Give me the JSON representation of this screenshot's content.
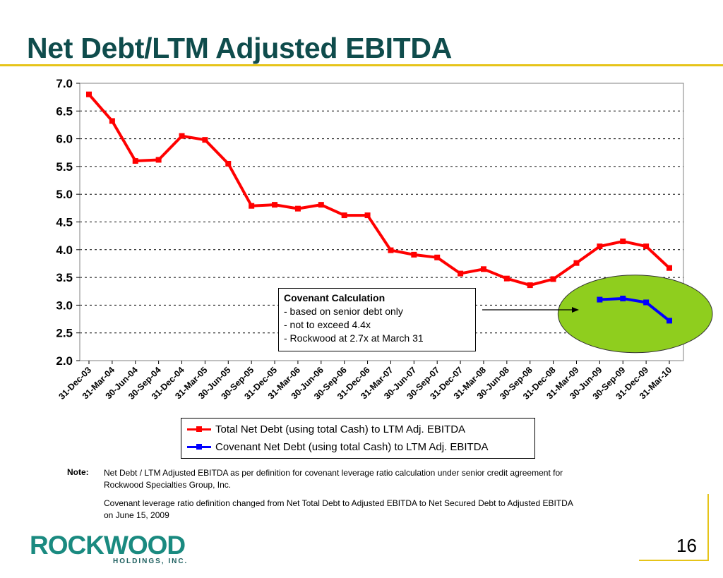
{
  "page": {
    "title": "Net Debt/LTM Adjusted EBITDA",
    "page_number": "16",
    "logo_text": "ROCKWOOD",
    "logo_subtext": "HOLDINGS, INC."
  },
  "callout": {
    "heading": "Covenant Calculation",
    "line1": "- based on senior debt only",
    "line2": "- not to exceed 4.4x",
    "line3": "- Rockwood at 2.7x at March 31"
  },
  "note": {
    "label": "Note:",
    "line1": "Net Debt / LTM Adjusted EBITDA as per definition for covenant leverage ratio calculation under senior credit agreement for",
    "line2": "Rockwood Specialties Group, Inc.",
    "line3": "Covenant leverage ratio definition changed from Net Total Debt to Adjusted EBITDA to Net Secured Debt to Adjusted EBITDA",
    "line4": "on June 15, 2009"
  },
  "colors": {
    "title": "#0f4c4c",
    "accent_rule": "#e6c419",
    "total_series": "#ff0000",
    "covenant_series": "#0000ff",
    "highlight_ellipse": "#8fce1e"
  },
  "chart_data": {
    "type": "line",
    "title": "",
    "xlabel": "",
    "ylabel": "",
    "ylim": [
      2.0,
      7.0
    ],
    "yticks": [
      "7.0",
      "6.5",
      "6.0",
      "5.5",
      "5.0",
      "4.5",
      "4.0",
      "3.5",
      "3.0",
      "2.5",
      "2.0"
    ],
    "grid": "horizontal dotted",
    "legend_position": "bottom",
    "categories": [
      "31-Dec-03",
      "31-Mar-04",
      "30-Jun-04",
      "30-Sep-04",
      "31-Dec-04",
      "31-Mar-05",
      "30-Jun-05",
      "30-Sep-05",
      "31-Dec-05",
      "31-Mar-06",
      "30-Jun-06",
      "30-Sep-06",
      "31-Dec-06",
      "31-Mar-07",
      "30-Jun-07",
      "30-Sep-07",
      "31-Dec-07",
      "31-Mar-08",
      "30-Jun-08",
      "30-Sep-08",
      "31-Dec-08",
      "31-Mar-09",
      "30-Jun-09",
      "30-Sep-09",
      "31-Dec-09",
      "31-Mar-10"
    ],
    "series": [
      {
        "name": "Total Net Debt (using total Cash) to LTM Adj. EBITDA",
        "color": "#ff0000",
        "values": [
          6.8,
          6.32,
          5.6,
          5.62,
          6.05,
          5.98,
          5.55,
          4.79,
          4.81,
          4.74,
          4.81,
          4.62,
          4.62,
          3.99,
          3.91,
          3.86,
          3.57,
          3.65,
          3.48,
          3.36,
          3.47,
          3.76,
          4.06,
          4.15,
          4.06,
          3.67
        ]
      },
      {
        "name": "Covenant Net Debt (using total Cash) to LTM Adj. EBITDA",
        "color": "#0000ff",
        "values": [
          null,
          null,
          null,
          null,
          null,
          null,
          null,
          null,
          null,
          null,
          null,
          null,
          null,
          null,
          null,
          null,
          null,
          null,
          null,
          null,
          null,
          null,
          3.1,
          3.12,
          3.05,
          2.72
        ]
      }
    ]
  }
}
